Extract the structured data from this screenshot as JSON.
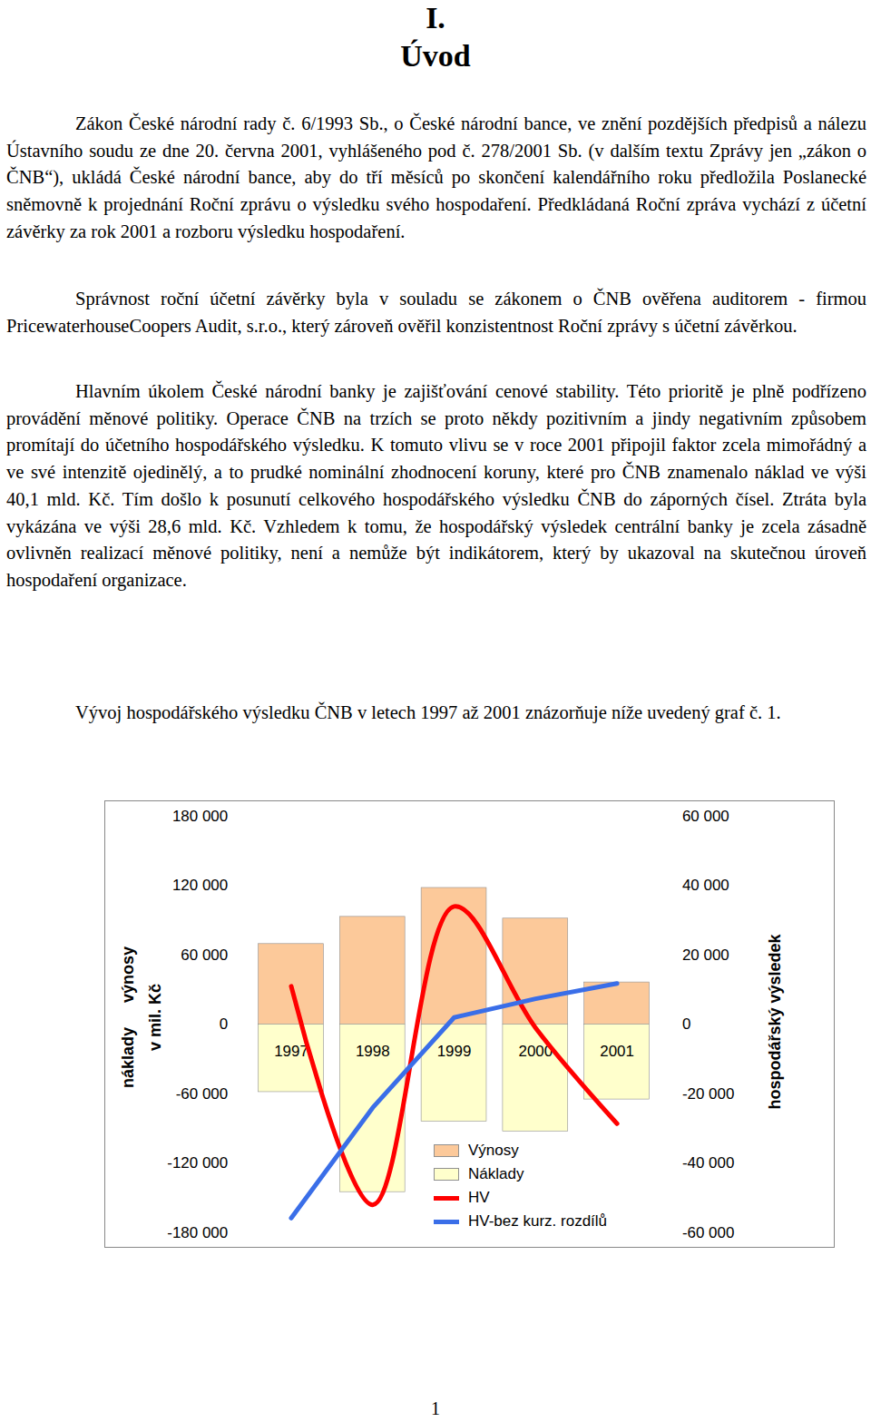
{
  "document": {
    "heading": {
      "number": "I.",
      "title": "Úvod"
    },
    "paragraphs": [
      "Zákon České národní rady č. 6/1993 Sb., o České národní bance, ve znění pozdějších předpisů a nálezu Ústavního soudu ze dne 20. června 2001, vyhlášeného pod č. 278/2001 Sb. (v dalším textu Zprávy jen „zákon o ČNB“), ukládá České národní bance, aby do tří měsíců po skončení kalendářního roku předložila Poslanecké sněmovně k projednání Roční zprávu o výsledku svého hospodaření. Předkládaná Roční zpráva vychází z účetní závěrky za rok 2001 a rozboru výsledku hospodaření.",
      "Správnost roční účetní závěrky byla v souladu se zákonem o ČNB ověřena auditorem - firmou PricewaterhouseCoopers Audit, s.r.o., který zároveň ověřil konzistentnost Roční zprávy s účetní závěrkou.",
      "Hlavním úkolem České národní banky je zajišťování cenové stability. Této prioritě je plně podřízeno provádění měnové politiky. Operace ČNB na trzích se proto někdy pozitivním a jindy negativním způsobem promítají do účetního hospodářského výsledku. K tomuto vlivu se v roce 2001 připojil faktor zcela mimořádný a ve své intenzitě ojedinělý, a to prudké nominální zhodnocení koruny, které pro ČNB znamenalo náklad ve výši 40,1 mld. Kč. Tím došlo k posunutí celkového hospodářského výsledku ČNB do záporných čísel. Ztráta byla vykázána ve výši 28,6 mld. Kč. Vzhledem k tomu, že hospodářský výsledek centrální banky je zcela zásadně ovlivněn realizací měnové politiky, není a nemůže být indikátorem, který by ukazoval na skutečnou úroveň hospodaření organizace.",
      "Vývoj hospodářského výsledku ČNB v letech 1997 až 2001 znázorňuje níže uvedený graf č. 1."
    ],
    "page_number": "1"
  },
  "chart_data": {
    "type": "bar",
    "y_label": [
      "náklady výnosy",
      "v mil. Kč"
    ],
    "y2_label": "hospodářský výsledek",
    "categories": [
      "1997",
      "1998",
      "1999",
      "2000",
      "2001"
    ],
    "series": [
      {
        "name": "Výnosy",
        "type": "bar",
        "color": "#fcc99a",
        "values": [
          69500,
          93000,
          118000,
          91500,
          36300
        ]
      },
      {
        "name": "Náklady",
        "type": "bar",
        "color": "#ffffcc",
        "values": [
          -58500,
          -145000,
          -84000,
          -92500,
          -64900
        ]
      },
      {
        "name": "HV",
        "type": "line",
        "axis": "y2",
        "color": "#ff0000",
        "line_style": "smooth",
        "values": [
          11000,
          -52000,
          34000,
          -1000,
          -28600
        ]
      },
      {
        "name": "HV-bez kurz. rozdílů",
        "type": "line",
        "axis": "y2",
        "color": "#3a6ee8",
        "line_style": "solid",
        "values": [
          -55800,
          -24000,
          2000,
          7400,
          11800
        ]
      }
    ],
    "ylim": [
      -180000,
      180000
    ],
    "yticks": [
      {
        "value": -180000,
        "label": "-180 000"
      },
      {
        "value": -120000,
        "label": "-120 000"
      },
      {
        "value": -60000,
        "label": "-60 000"
      },
      0,
      {
        "value": 60000,
        "label": "60 000"
      },
      {
        "value": 120000,
        "label": "120 000"
      },
      {
        "value": 180000,
        "label": "180 000"
      }
    ],
    "y2lim": [
      -60000,
      60000
    ],
    "y2ticks": [
      {
        "value": -60000,
        "label": "-60 000"
      },
      {
        "value": -40000,
        "label": "-40 000"
      },
      {
        "value": -20000,
        "label": "-20 000"
      },
      0,
      {
        "value": 20000,
        "label": "20 000"
      },
      {
        "value": 40000,
        "label": "40 000"
      },
      {
        "value": 60000,
        "label": "60 000"
      }
    ],
    "grid": false,
    "legend": "bottom"
  }
}
